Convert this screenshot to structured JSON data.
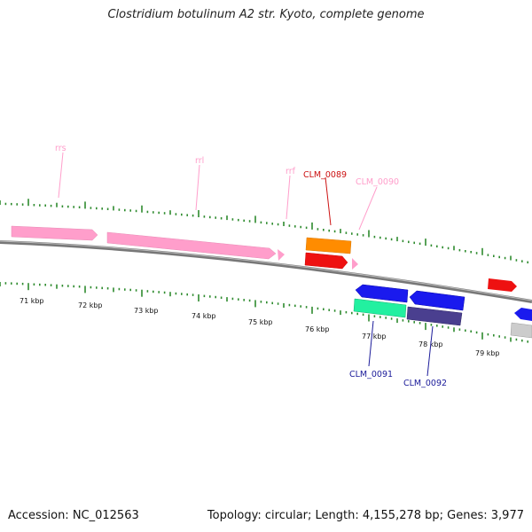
{
  "title": "Clostridium botulinum A2 str. Kyoto, complete genome",
  "footer": {
    "accession": "Accession: NC_012563",
    "summary": "Topology: circular; Length: 4,155,278 bp; Genes: 3,977"
  },
  "colors": {
    "backbone": "#7a7a7a",
    "tick_major": "#2e8b2e",
    "tick_minor": "#2e8b2e",
    "rna": "#ff9ecb",
    "red": "#ee1111",
    "orange": "#ff8c00",
    "blue": "#1a1aee",
    "teal": "#22f0a0",
    "slate": "#4a3f8f",
    "grey": "#cccccc"
  },
  "scale": {
    "ticks": [
      "71 kbp",
      "72 kbp",
      "73 kbp",
      "74 kbp",
      "75 kbp",
      "76 kbp",
      "77 kbp",
      "78 kbp",
      "79 kbp"
    ]
  },
  "labels": {
    "rrs": "rrs",
    "rrl": "rrl",
    "rrf": "rrf",
    "clm0089": "CLM_0089",
    "clm0090": "CLM_0090",
    "clm0091": "CLM_0091",
    "clm0092": "CLM_0092"
  }
}
